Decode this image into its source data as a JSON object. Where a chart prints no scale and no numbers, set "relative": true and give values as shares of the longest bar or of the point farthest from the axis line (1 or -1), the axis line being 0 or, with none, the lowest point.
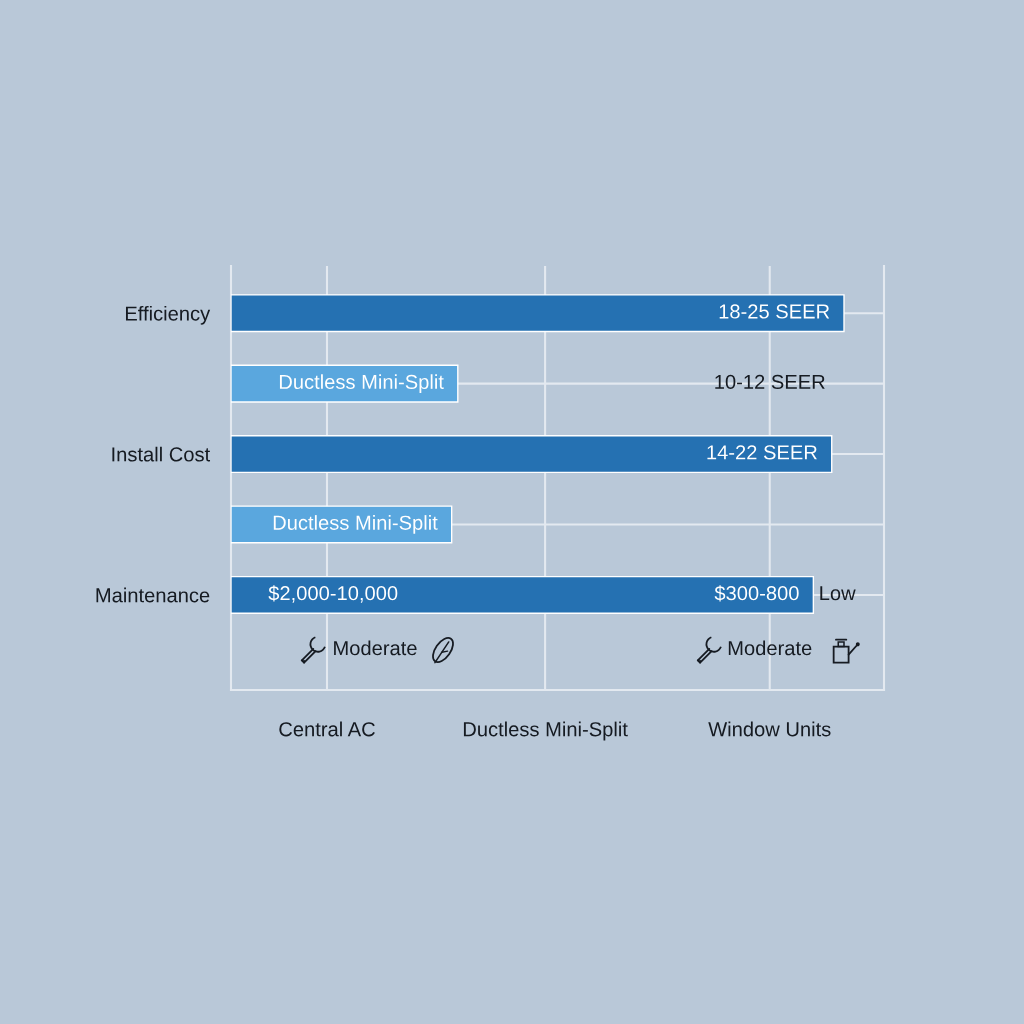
{
  "chart_data": {
    "type": "bar",
    "orientation": "horizontal",
    "relative": true,
    "categories": [
      "Efficiency",
      null,
      "Install Cost",
      null,
      "Maintenance"
    ],
    "values": [
      1,
      0.37,
      0.98,
      0.36,
      0.95
    ],
    "colors": [
      "#2571b2",
      "#5aa7de",
      "#2571b2",
      "#5aa7de",
      "#2571b2"
    ],
    "annotations": [
      "18-25 SEER",
      "Ductless Mini-Split",
      "10-12 SEER",
      "14-22 SEER",
      "Ductless Mini-Split",
      "$2,000-10,000",
      "$300-800",
      "Low",
      "Moderate",
      "Moderate",
      "Central AC",
      "Ductless Mini-Split",
      "Window Units"
    ],
    "grid": true
  }
}
